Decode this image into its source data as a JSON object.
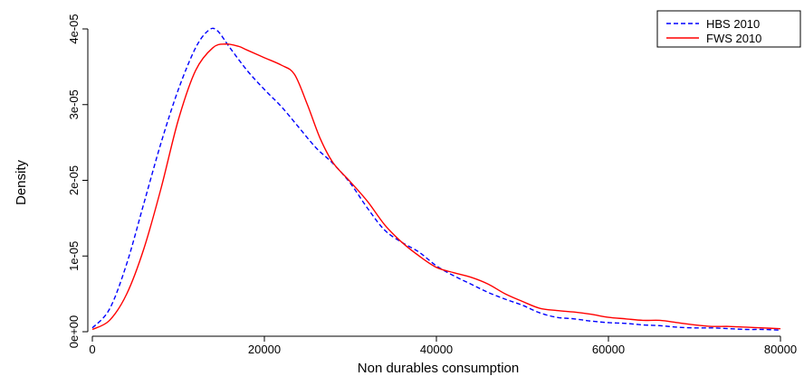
{
  "chart_data": {
    "type": "line",
    "title": "",
    "xlabel": "Non durables consumption",
    "ylabel": "Density",
    "xlim": [
      0,
      80000
    ],
    "ylim": [
      0,
      4e-05
    ],
    "x_ticks": [
      0,
      20000,
      40000,
      60000,
      80000
    ],
    "x_tick_labels": [
      "0",
      "20000",
      "40000",
      "60000",
      "80000"
    ],
    "y_ticks": [
      0,
      1e-05,
      2e-05,
      3e-05,
      4e-05
    ],
    "y_tick_labels": [
      "0e+00",
      "1e-05",
      "2e-05",
      "3e-05",
      "4e-05"
    ],
    "grid": false,
    "legend": "top-right",
    "series": [
      {
        "name": "HBS 2010",
        "color": "#0000ff",
        "dash": "dashed",
        "x": [
          0,
          2000,
          4000,
          6000,
          8000,
          10000,
          12000,
          13500,
          14500,
          16000,
          18000,
          20000,
          22000,
          24000,
          26000,
          28000,
          30000,
          32000,
          34000,
          36000,
          38000,
          40000,
          42000,
          44000,
          46000,
          48000,
          50000,
          52000,
          54000,
          56000,
          58000,
          60000,
          62000,
          64000,
          66000,
          68000,
          70000,
          72000,
          74000,
          76000,
          78000,
          80000
        ],
        "y": [
          5e-07,
          3e-06,
          9e-06,
          1.7e-05,
          2.5e-05,
          3.2e-05,
          3.75e-05,
          3.98e-05,
          3.98e-05,
          3.75e-05,
          3.45e-05,
          3.2e-05,
          2.97e-05,
          2.7e-05,
          2.43e-05,
          2.22e-05,
          1.96e-05,
          1.63e-05,
          1.34e-05,
          1.18e-05,
          1.05e-05,
          8.7e-06,
          7.4e-06,
          6.3e-06,
          5.2e-06,
          4.3e-06,
          3.5e-06,
          2.5e-06,
          1.9e-06,
          1.7e-06,
          1.4e-06,
          1.2e-06,
          1.1e-06,
          9e-07,
          8e-07,
          6e-07,
          5e-07,
          5e-07,
          4e-07,
          3e-07,
          3e-07,
          2e-07
        ]
      },
      {
        "name": "FWS 2010",
        "color": "#ff0000",
        "dash": "solid",
        "x": [
          0,
          2000,
          4000,
          6000,
          8000,
          10000,
          12000,
          14000,
          15500,
          17000,
          18000,
          20000,
          22000,
          23500,
          25000,
          26500,
          28000,
          30000,
          32000,
          34000,
          36000,
          38000,
          40000,
          42000,
          44000,
          46000,
          48000,
          50000,
          52000,
          54000,
          56000,
          58000,
          60000,
          62000,
          64000,
          66000,
          68000,
          70000,
          72000,
          74000,
          76000,
          78000,
          80000
        ],
        "y": [
          3e-07,
          1.5e-06,
          5e-06,
          1.1e-05,
          1.9e-05,
          2.8e-05,
          3.45e-05,
          3.75e-05,
          3.8e-05,
          3.77e-05,
          3.72e-05,
          3.62e-05,
          3.52e-05,
          3.4e-05,
          3e-05,
          2.55e-05,
          2.23e-05,
          1.98e-05,
          1.72e-05,
          1.41e-05,
          1.18e-05,
          1e-05,
          8.5e-06,
          7.8e-06,
          7.2e-06,
          6.3e-06,
          5e-06,
          4e-06,
          3.1e-06,
          2.8e-06,
          2.6e-06,
          2.3e-06,
          1.9e-06,
          1.7e-06,
          1.5e-06,
          1.5e-06,
          1.2e-06,
          9e-07,
          7e-07,
          7e-07,
          6e-07,
          5e-07,
          4e-07
        ]
      }
    ]
  }
}
